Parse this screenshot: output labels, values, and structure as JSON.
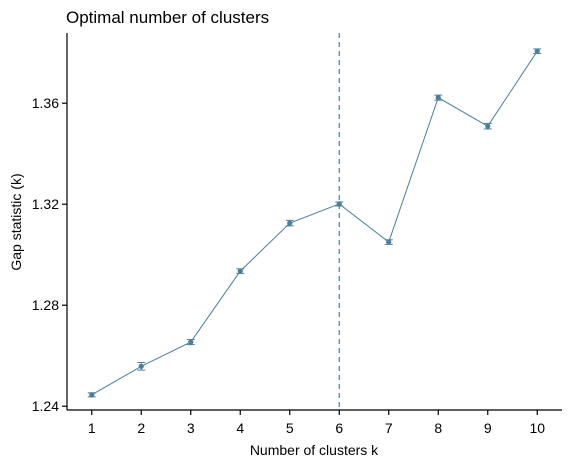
{
  "chart_data": {
    "type": "line",
    "title": "Optimal number of clusters",
    "xlabel": "Number of clusters k",
    "ylabel": "Gap statistic (k)",
    "x": [
      1,
      2,
      3,
      4,
      5,
      6,
      7,
      8,
      9,
      10
    ],
    "series": [
      {
        "values": [
          1.2445,
          1.2558,
          1.2654,
          1.2935,
          1.3125,
          1.3201,
          1.305,
          1.3622,
          1.3509,
          1.3806
        ],
        "error": [
          0.0008,
          0.0015,
          0.001,
          0.0009,
          0.0011,
          0.0008,
          0.0009,
          0.001,
          0.0011,
          0.0009
        ]
      }
    ],
    "xticks": [
      "1",
      "2",
      "3",
      "4",
      "5",
      "6",
      "7",
      "8",
      "9",
      "10"
    ],
    "yticks": [
      1.24,
      1.28,
      1.32,
      1.36
    ],
    "ytick_labels": [
      "1.24",
      "1.28",
      "1.32",
      "1.36"
    ],
    "xlim": [
      0.5,
      10.5
    ],
    "ylim": [
      1.2385,
      1.3878
    ],
    "optimal_k": 6,
    "grid": false,
    "colors": {
      "series": "#4a7f9b",
      "reference_line": "#4a7f9b",
      "axis": "#000000"
    }
  }
}
